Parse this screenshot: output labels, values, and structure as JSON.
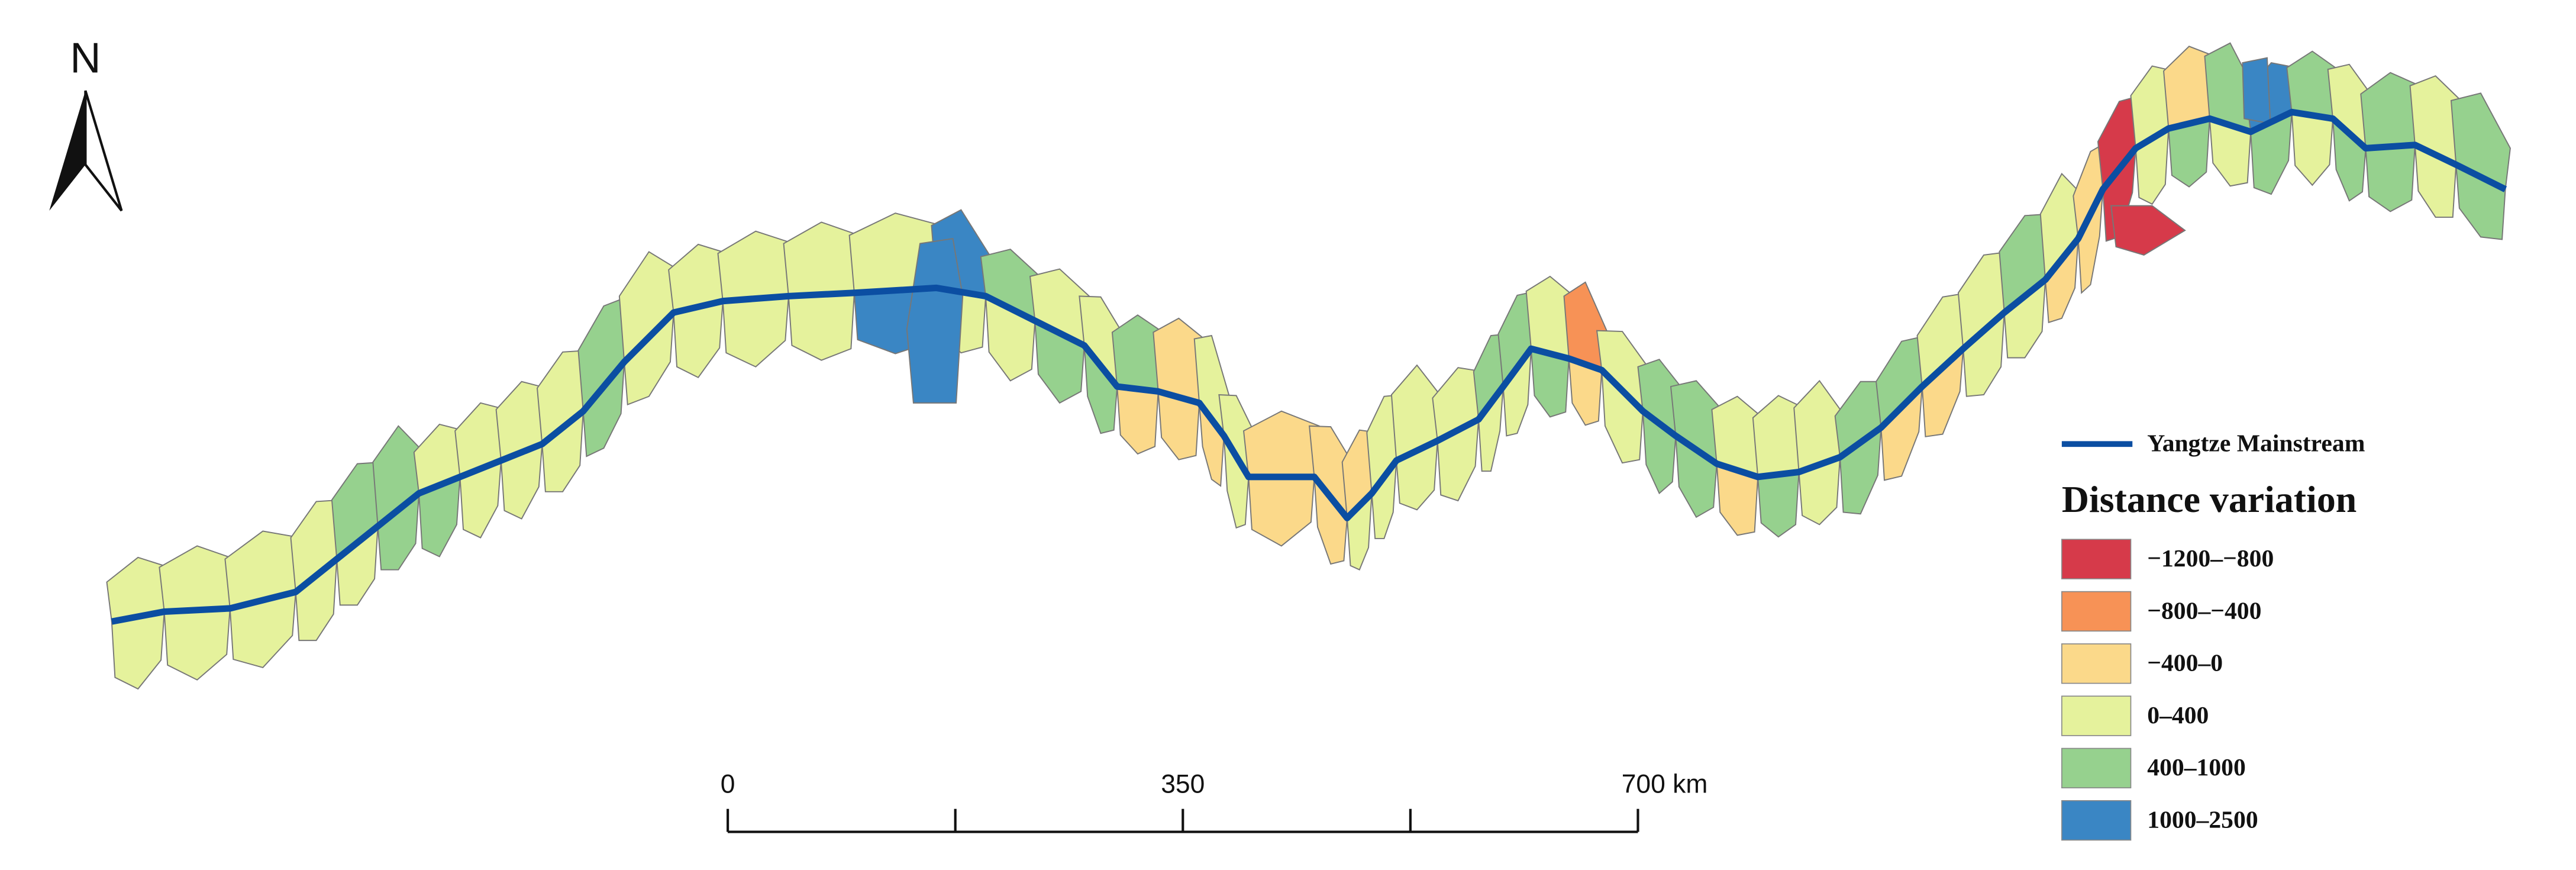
{
  "north_arrow": {
    "label": "N"
  },
  "legend": {
    "line_label": "Yangtze Mainstream",
    "line_color": "#0b4ea2",
    "title": "Distance variation",
    "classes": [
      {
        "label": "−1200–−800",
        "color": "#d63a4a"
      },
      {
        "label": "−800–−400",
        "color": "#f79256"
      },
      {
        "label": "−400–0",
        "color": "#fbd98a"
      },
      {
        "label": "0–400",
        "color": "#e5f29c"
      },
      {
        "label": "400–1000",
        "color": "#96d18e"
      },
      {
        "label": "1000–2500",
        "color": "#3a86c4"
      }
    ]
  },
  "scale_bar": {
    "ticks": [
      0,
      350,
      {
        "value": 700,
        "label": "700 km"
      }
    ]
  }
}
